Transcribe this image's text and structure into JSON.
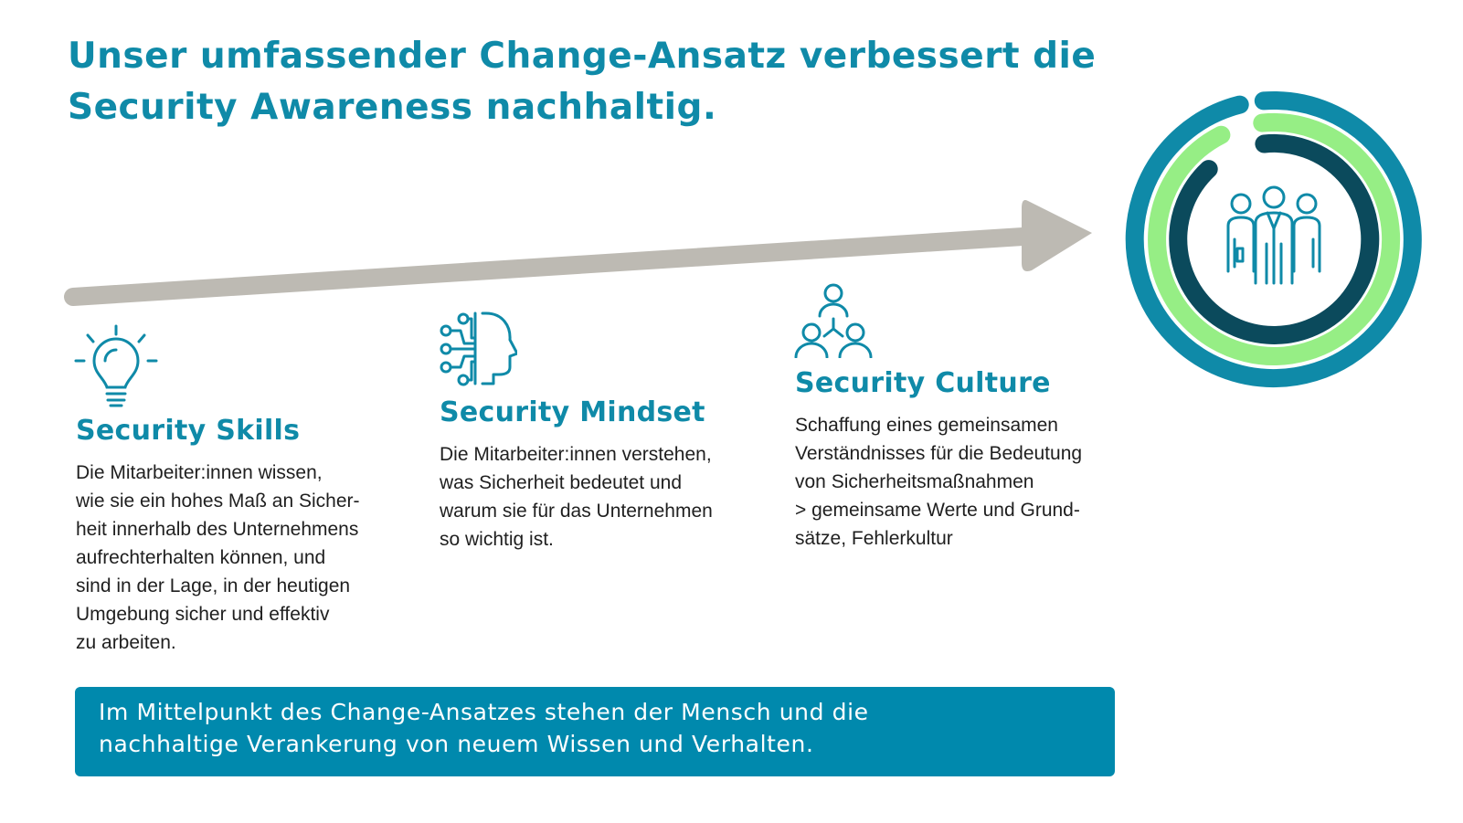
{
  "title_lines": [
    "Unser umfassender Change-Ansatz verbessert die",
    "Security Awareness nachhaltig."
  ],
  "columns": [
    {
      "icon": "lightbulb-icon",
      "heading": "Security Skills",
      "lines": [
        "Die Mitarbeiter:innen wissen,",
        "wie sie ein hohes Maß an Sicher-",
        "heit innerhalb des Unternehmens",
        "aufrechterhalten können, und",
        "sind in der Lage, in der heutigen",
        "Umgebung sicher und effektiv",
        "zu arbeiten."
      ]
    },
    {
      "icon": "brain-circuit-head-icon",
      "heading": "Security Mindset",
      "lines": [
        "Die Mitarbeiter:innen verstehen,",
        "was Sicherheit bedeutet und",
        "warum sie für das Unternehmen",
        "so wichtig ist."
      ]
    },
    {
      "icon": "people-network-icon",
      "heading": "Security Culture",
      "lines": [
        "Schaffung eines gemeinsamen",
        "Verständnisses für die Bedeutung",
        "von Sicherheitsmaßnahmen",
        "> gemeinsame Werte und Grund-",
        "sätze, Fehlerkultur"
      ]
    }
  ],
  "banner_lines": [
    "Im Mittelpunkt des Change-Ansatzes stehen der Mensch und die",
    "nachhaltige Verankerung von neuem Wissen und Verhalten."
  ],
  "circle_icon": "team-people-icon",
  "colors": {
    "accent": "#0f8aa8",
    "arrow": "#bdbab3",
    "ring_outer": "#0f8aa8",
    "ring_middle": "#96ee85",
    "ring_inner": "#0b4a5c",
    "banner": "#0089ad"
  }
}
